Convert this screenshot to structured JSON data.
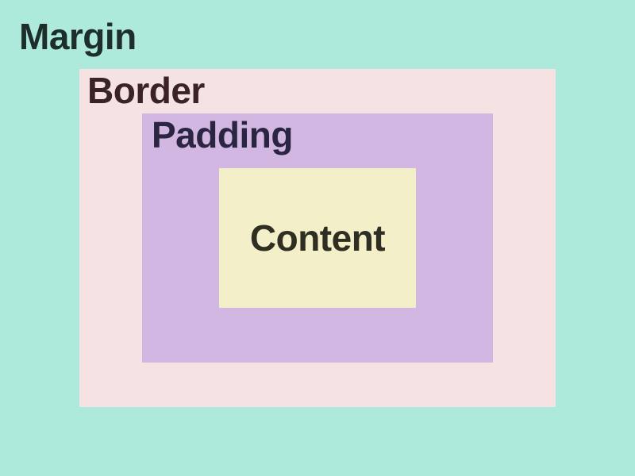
{
  "layers": {
    "margin": {
      "label": "Margin",
      "color": "#AEEADB",
      "text_color": "#1E2E2A"
    },
    "border": {
      "label": "Border",
      "color": "#F5E3E3",
      "text_color": "#3A2226"
    },
    "padding": {
      "label": "Padding",
      "color": "#D2B7E2",
      "text_color": "#2A2540"
    },
    "content": {
      "label": "Content",
      "color": "#F3EFC9",
      "text_color": "#2E2E22"
    }
  }
}
